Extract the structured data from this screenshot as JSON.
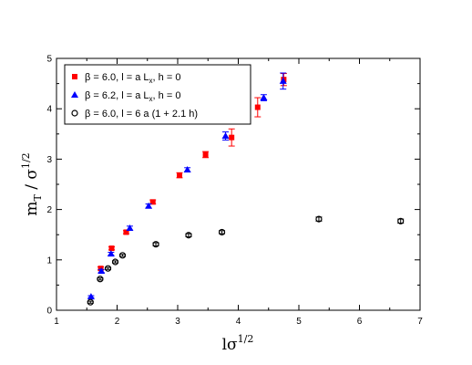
{
  "chart_data": {
    "type": "scatter",
    "title": "",
    "xlabel": {
      "main": "lσ",
      "sup": "1/2"
    },
    "ylabel": {
      "main": "m",
      "sub": "T",
      "mid": " / σ",
      "sup": "1/2"
    },
    "xlim": [
      1,
      7
    ],
    "ylim": [
      0,
      5
    ],
    "xticks": [
      1,
      2,
      3,
      4,
      5,
      6,
      7
    ],
    "yticks": [
      0,
      1,
      2,
      3,
      4,
      5
    ],
    "xtick_labels": [
      "1",
      "2",
      "3",
      "4",
      "5",
      "6",
      "7"
    ],
    "ytick_labels": [
      "0",
      "1",
      "2",
      "3",
      "4",
      "5"
    ],
    "grid": false,
    "legend_position": "top-left",
    "series": [
      {
        "name": "β = 6.0, l = a L",
        "name_sub": "x",
        "name_tail": ",   h = 0",
        "marker": "square",
        "color": "#ff0000",
        "errcolor": "#ff0000",
        "points": [
          {
            "x": 1.73,
            "y": 0.83,
            "err": 0.03
          },
          {
            "x": 1.91,
            "y": 1.23,
            "err": 0.03
          },
          {
            "x": 2.15,
            "y": 1.55,
            "err": 0.03
          },
          {
            "x": 2.59,
            "y": 2.15,
            "err": 0.04
          },
          {
            "x": 3.03,
            "y": 2.68,
            "err": 0.05
          },
          {
            "x": 3.46,
            "y": 3.09,
            "err": 0.06
          },
          {
            "x": 3.89,
            "y": 3.43,
            "err": 0.17
          },
          {
            "x": 4.32,
            "y": 4.03,
            "err": 0.19
          },
          {
            "x": 4.75,
            "y": 4.58,
            "err": 0.12
          }
        ]
      },
      {
        "name": "β = 6.2, l = a L",
        "name_sub": "x",
        "name_tail": ",   h = 0",
        "marker": "triangle",
        "color": "#0000ff",
        "errcolor": "#0000ff",
        "points": [
          {
            "x": 1.57,
            "y": 0.27,
            "err": 0.02
          },
          {
            "x": 1.74,
            "y": 0.78,
            "err": 0.03
          },
          {
            "x": 1.9,
            "y": 1.12,
            "err": 0.03
          },
          {
            "x": 2.21,
            "y": 1.63,
            "err": 0.04
          },
          {
            "x": 2.52,
            "y": 2.07,
            "err": 0.04
          },
          {
            "x": 3.16,
            "y": 2.79,
            "err": 0.04
          },
          {
            "x": 3.79,
            "y": 3.46,
            "err": 0.08
          },
          {
            "x": 4.42,
            "y": 4.22,
            "err": 0.06
          },
          {
            "x": 4.74,
            "y": 4.55,
            "err": 0.16
          }
        ]
      },
      {
        "name": "β = 6.0, l = 6 a (1 + 2.1 h)",
        "name_sub": "",
        "name_tail": "",
        "marker": "circle-open",
        "color": "#000000",
        "errcolor": "#000000",
        "points": [
          {
            "x": 1.56,
            "y": 0.16,
            "err": 0.02
          },
          {
            "x": 1.72,
            "y": 0.62,
            "err": 0.02
          },
          {
            "x": 1.85,
            "y": 0.83,
            "err": 0.02
          },
          {
            "x": 1.97,
            "y": 0.96,
            "err": 0.02
          },
          {
            "x": 2.09,
            "y": 1.09,
            "err": 0.02
          },
          {
            "x": 2.64,
            "y": 1.31,
            "err": 0.03
          },
          {
            "x": 3.18,
            "y": 1.49,
            "err": 0.03
          },
          {
            "x": 3.73,
            "y": 1.55,
            "err": 0.03
          },
          {
            "x": 5.33,
            "y": 1.81,
            "err": 0.04
          },
          {
            "x": 6.68,
            "y": 1.77,
            "err": 0.04
          }
        ]
      }
    ]
  }
}
